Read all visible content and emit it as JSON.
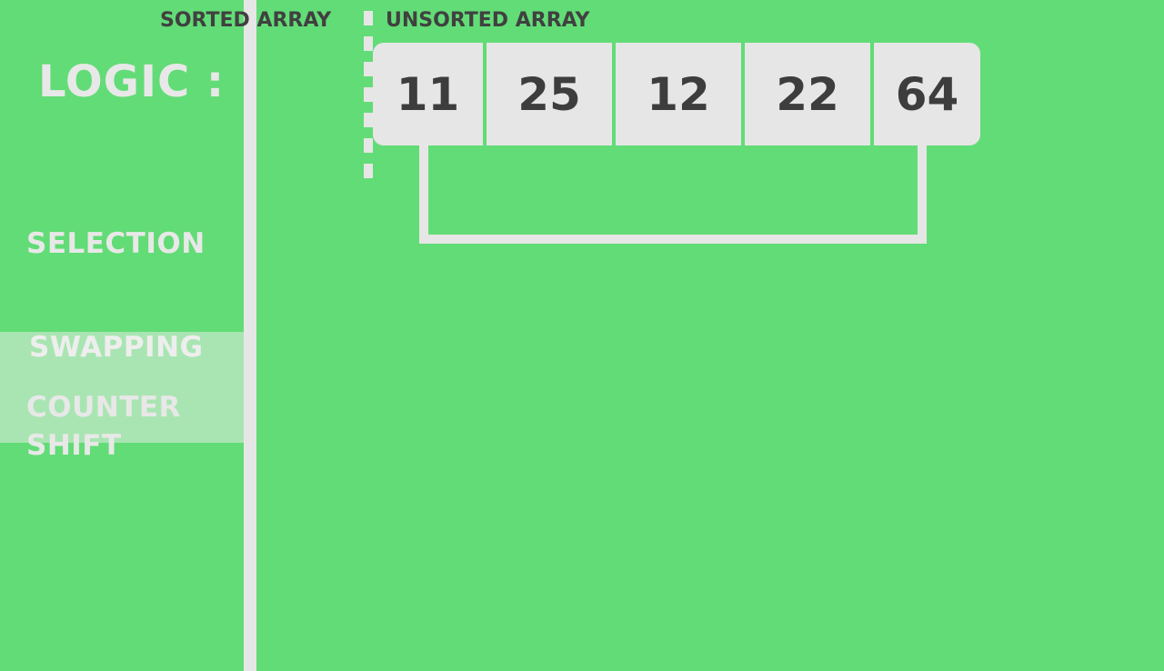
{
  "headers": {
    "sorted": "SORTED ARRAY",
    "unsorted": "UNSORTED ARRAY"
  },
  "sidebar": {
    "title": "LOGIC :",
    "steps": [
      "SELECTION",
      "SWAPPING",
      "COUNTER",
      "SHIFT"
    ],
    "highlighted_step": "SWAPPING"
  },
  "array": {
    "values": [
      "11",
      "25",
      "12",
      "22",
      "64"
    ]
  },
  "swap": {
    "from_value": "11",
    "to_value": "64"
  },
  "colors": {
    "background": "#62dc76",
    "cell": "#e6e6e6",
    "cell_text": "#3d3d3d",
    "label_text": "#e8e8e8",
    "highlight": "#a9e5b2"
  }
}
